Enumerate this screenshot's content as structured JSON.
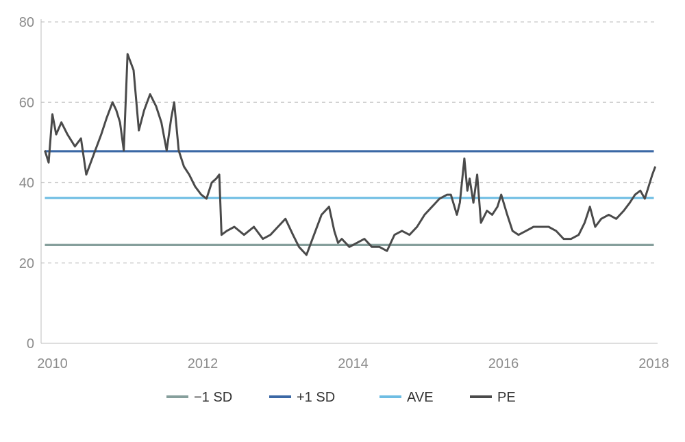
{
  "chart_data": {
    "type": "line",
    "title": "",
    "xlabel": "",
    "ylabel": "",
    "xlim": [
      2009.85,
      2018.05
    ],
    "ylim": [
      0,
      80
    ],
    "y_ticks": [
      0,
      20,
      40,
      60,
      80
    ],
    "y_tick_labels": [
      "0",
      "20",
      "40",
      "60",
      "80"
    ],
    "x_ticks": [
      2010,
      2012,
      2014,
      2016,
      2018
    ],
    "x_tick_labels": [
      "2010",
      "2012",
      "2014",
      "2016",
      "2018"
    ],
    "grid": "horizontal dashed",
    "legend_position": "bottom",
    "series": [
      {
        "name": "−1 SD",
        "color": "#869f9c",
        "kind": "constant",
        "x": [
          2009.9,
          2018.0
        ],
        "y": [
          24.5,
          24.5
        ]
      },
      {
        "name": "+1 SD",
        "color": "#3b68a5",
        "kind": "constant",
        "x": [
          2009.9,
          2018.0
        ],
        "y": [
          47.8,
          47.8
        ]
      },
      {
        "name": "AVE",
        "color": "#6ebde3",
        "kind": "constant",
        "x": [
          2009.9,
          2018.0
        ],
        "y": [
          36.2,
          36.2
        ]
      },
      {
        "name": "PE",
        "color": "#4a4a4a",
        "kind": "line",
        "x": [
          2009.9,
          2009.95,
          2010.0,
          2010.05,
          2010.12,
          2010.2,
          2010.3,
          2010.38,
          2010.45,
          2010.55,
          2010.65,
          2010.72,
          2010.8,
          2010.85,
          2010.9,
          2010.95,
          2011.0,
          2011.08,
          2011.15,
          2011.22,
          2011.3,
          2011.38,
          2011.45,
          2011.52,
          2011.58,
          2011.62,
          2011.68,
          2011.75,
          2011.82,
          2011.9,
          2011.98,
          2012.05,
          2012.12,
          2012.18,
          2012.22,
          2012.25,
          2012.32,
          2012.42,
          2012.55,
          2012.68,
          2012.8,
          2012.9,
          2013.0,
          2013.1,
          2013.2,
          2013.28,
          2013.38,
          2013.48,
          2013.58,
          2013.68,
          2013.75,
          2013.8,
          2013.85,
          2013.95,
          2014.05,
          2014.15,
          2014.25,
          2014.35,
          2014.45,
          2014.55,
          2014.65,
          2014.75,
          2014.85,
          2014.95,
          2015.05,
          2015.15,
          2015.25,
          2015.3,
          2015.38,
          2015.42,
          2015.48,
          2015.52,
          2015.55,
          2015.6,
          2015.65,
          2015.7,
          2015.78,
          2015.85,
          2015.92,
          2015.97,
          2016.05,
          2016.12,
          2016.2,
          2016.3,
          2016.4,
          2016.5,
          2016.6,
          2016.7,
          2016.8,
          2016.9,
          2017.0,
          2017.08,
          2017.15,
          2017.22,
          2017.3,
          2017.4,
          2017.5,
          2017.6,
          2017.68,
          2017.75,
          2017.82,
          2017.88,
          2017.93,
          2017.98,
          2018.02
        ],
        "y": [
          48,
          45,
          57,
          52,
          55,
          52,
          49,
          51,
          42,
          47,
          52,
          56,
          60,
          58,
          55,
          48,
          72,
          68,
          53,
          58,
          62,
          59,
          55,
          48,
          56,
          60,
          48,
          44,
          42,
          39,
          37,
          36,
          40,
          41,
          42,
          27,
          28,
          29,
          27,
          29,
          26,
          27,
          29,
          31,
          27,
          24,
          22,
          27,
          32,
          34,
          28,
          25,
          26,
          24,
          25,
          26,
          24,
          24,
          23,
          27,
          28,
          27,
          29,
          32,
          34,
          36,
          37,
          37,
          32,
          35,
          46,
          38,
          41,
          35,
          42,
          30,
          33,
          32,
          34,
          37,
          32,
          28,
          27,
          28,
          29,
          29,
          29,
          28,
          26,
          26,
          27,
          30,
          34,
          29,
          31,
          32,
          31,
          33,
          35,
          37,
          38,
          36,
          39,
          42,
          44
        ]
      }
    ]
  }
}
